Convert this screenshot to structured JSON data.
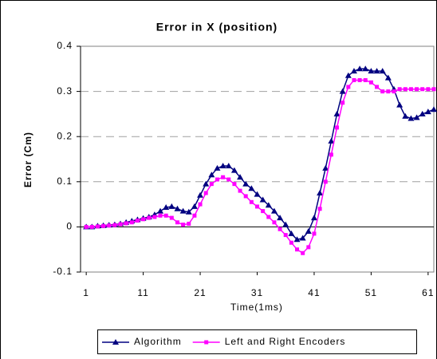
{
  "chart_data": {
    "type": "line",
    "title": "Error in X (position)",
    "xlabel": "Time(1ms)",
    "ylabel": "Error (Cm)",
    "x": [
      1,
      2,
      3,
      4,
      5,
      6,
      7,
      8,
      9,
      10,
      11,
      12,
      13,
      14,
      15,
      16,
      17,
      18,
      19,
      20,
      21,
      22,
      23,
      24,
      25,
      26,
      27,
      28,
      29,
      30,
      31,
      32,
      33,
      34,
      35,
      36,
      37,
      38,
      39,
      40,
      41,
      42,
      43,
      44,
      45,
      46,
      47,
      48,
      49,
      50,
      51,
      52,
      53,
      54,
      55,
      56,
      57,
      58,
      59,
      60,
      61,
      62
    ],
    "series": [
      {
        "name": "Algorithm",
        "color": "#000080",
        "marker": "triangle",
        "values": [
          0,
          0,
          0.002,
          0.003,
          0.004,
          0.005,
          0.007,
          0.01,
          0.013,
          0.016,
          0.019,
          0.022,
          0.027,
          0.035,
          0.043,
          0.045,
          0.04,
          0.035,
          0.033,
          0.045,
          0.07,
          0.095,
          0.115,
          0.13,
          0.135,
          0.135,
          0.125,
          0.11,
          0.095,
          0.085,
          0.072,
          0.06,
          0.048,
          0.035,
          0.02,
          0.005,
          -0.015,
          -0.028,
          -0.025,
          -0.01,
          0.02,
          0.075,
          0.13,
          0.19,
          0.25,
          0.3,
          0.335,
          0.345,
          0.35,
          0.35,
          0.345,
          0.345,
          0.345,
          0.33,
          0.305,
          0.27,
          0.245,
          0.24,
          0.242,
          0.25,
          0.255,
          0.26
        ]
      },
      {
        "name": "Left and Right Encoders",
        "color": "#ff00ff",
        "marker": "square",
        "values": [
          0,
          0,
          0.001,
          0.002,
          0.003,
          0.004,
          0.006,
          0.008,
          0.01,
          0.014,
          0.017,
          0.02,
          0.022,
          0.025,
          0.025,
          0.02,
          0.01,
          0.005,
          0.007,
          0.025,
          0.05,
          0.075,
          0.095,
          0.105,
          0.11,
          0.105,
          0.095,
          0.08,
          0.068,
          0.055,
          0.045,
          0.035,
          0.022,
          0.01,
          -0.005,
          -0.018,
          -0.035,
          -0.05,
          -0.058,
          -0.045,
          -0.015,
          0.04,
          0.1,
          0.16,
          0.22,
          0.275,
          0.31,
          0.325,
          0.325,
          0.325,
          0.32,
          0.31,
          0.3,
          0.3,
          0.3,
          0.305,
          0.305,
          0.305,
          0.305,
          0.305,
          0.305,
          0.305
        ]
      }
    ],
    "xlim": [
      0,
      62
    ],
    "xticks": [
      1,
      11,
      21,
      31,
      41,
      51,
      61
    ],
    "ylim": [
      -0.1,
      0.4
    ],
    "yticks": [
      -0.1,
      0,
      0.1,
      0.2,
      0.3,
      0.4
    ],
    "grid": true,
    "legend": "bottom"
  }
}
